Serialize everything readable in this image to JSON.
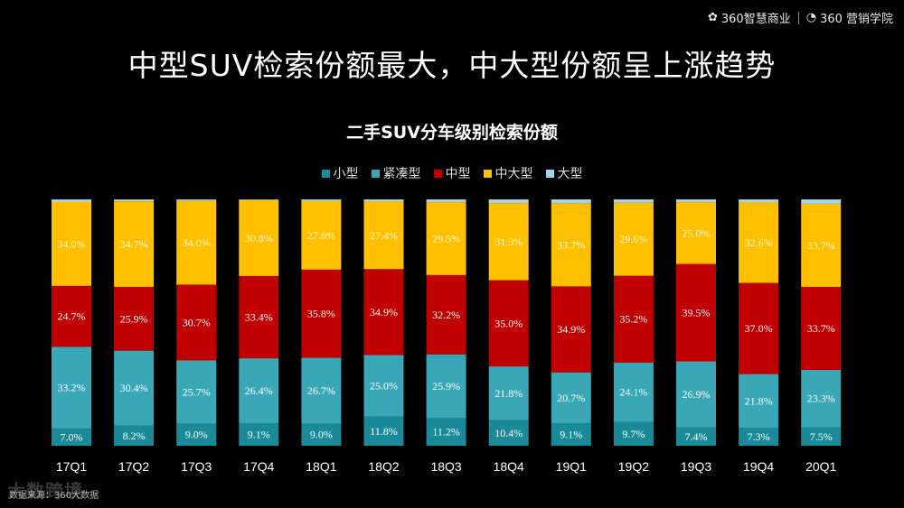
{
  "logos": [
    {
      "icon": "flower-icon",
      "text": "360智慧商业"
    },
    {
      "icon": "flame-icon",
      "text": "360 营销学院"
    }
  ],
  "headline": "中型SUV检索份额最大，中大型份额呈上涨趋势",
  "source": "数据来源：360大数据",
  "watermark": "大数跨境",
  "colors": {
    "small": "#1a8a99",
    "compact": "#3aa7b6",
    "mid": "#c00000",
    "midlarge": "#ffc000",
    "large": "#a6d4e0"
  },
  "chart_data": {
    "type": "bar",
    "stacked": true,
    "title": "二手SUV分车级别检索份额",
    "legend_position": "top",
    "categories": [
      "17Q1",
      "17Q2",
      "17Q3",
      "17Q4",
      "18Q1",
      "18Q2",
      "18Q3",
      "18Q4",
      "19Q1",
      "19Q2",
      "19Q3",
      "19Q4",
      "20Q1"
    ],
    "series": [
      {
        "name": "小型",
        "key": "small",
        "values": [
          7.0,
          8.2,
          9.0,
          9.1,
          9.0,
          11.8,
          11.2,
          10.4,
          9.1,
          9.7,
          7.4,
          7.3,
          7.5
        ],
        "labels": [
          "7.0%",
          "8.2%",
          "9.0%",
          "9.1%",
          "9.0%",
          "11.8%",
          "11.2%",
          "10.4%",
          "9.1%",
          "9.7%",
          "7.4%",
          "7.3%",
          "7.5%"
        ]
      },
      {
        "name": "紧凑型",
        "key": "compact",
        "values": [
          33.2,
          30.4,
          25.7,
          26.4,
          26.7,
          25.0,
          25.9,
          21.8,
          20.7,
          24.1,
          26.9,
          21.8,
          23.3
        ],
        "labels": [
          "33.2%",
          "30.4%",
          "25.7%",
          "26.4%",
          "26.7%",
          "25.0%",
          "25.9%",
          "21.8%",
          "20.7%",
          "24.1%",
          "26.9%",
          "21.8%",
          "23.3%"
        ]
      },
      {
        "name": "中型",
        "key": "mid",
        "values": [
          24.7,
          25.9,
          30.7,
          33.4,
          35.8,
          34.9,
          32.2,
          35.0,
          34.9,
          35.2,
          39.5,
          37.0,
          33.7
        ],
        "labels": [
          "24.7%",
          "25.9%",
          "30.7%",
          "33.4%",
          "35.8%",
          "34.9%",
          "32.2%",
          "35.0%",
          "34.9%",
          "35.2%",
          "39.5%",
          "37.0%",
          "33.7%"
        ]
      },
      {
        "name": "中大型",
        "key": "midlarge",
        "values": [
          34.0,
          34.7,
          34.0,
          30.8,
          27.8,
          27.4,
          29.5,
          31.3,
          33.7,
          29.6,
          25.0,
          32.6,
          33.7
        ],
        "labels": [
          "34.0%",
          "34.7%",
          "34.0%",
          "30.8%",
          "27.8%",
          "27.4%",
          "29.5%",
          "31.3%",
          "33.7%",
          "29.6%",
          "25.0%",
          "32.6%",
          "33.7%"
        ]
      },
      {
        "name": "大型",
        "key": "large",
        "values": [
          1.1,
          0.8,
          0.6,
          0.3,
          0.7,
          0.9,
          1.2,
          1.5,
          1.6,
          1.4,
          1.2,
          1.3,
          1.8
        ]
      }
    ],
    "ylim": [
      0,
      100
    ],
    "xlabel": "",
    "ylabel": "",
    "grid": false
  }
}
